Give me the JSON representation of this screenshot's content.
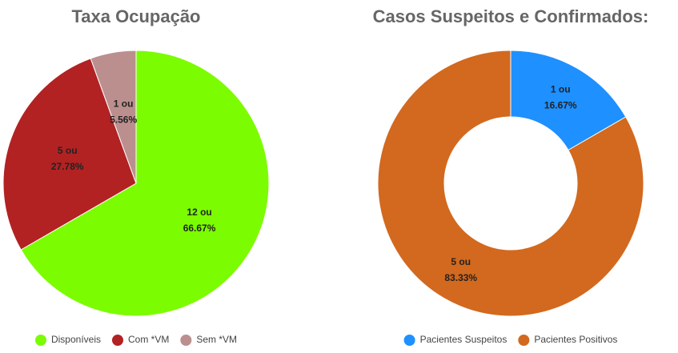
{
  "chart_data": [
    {
      "type": "pie",
      "title": "Taxa Ocupação",
      "categories": [
        "Disponíveis",
        "Com *VM",
        "Sem *VM"
      ],
      "values": [
        12,
        5,
        1
      ],
      "value_labels": [
        [
          "12 ou",
          "66.67%"
        ],
        [
          "5 ou",
          "27.78%"
        ],
        [
          "1 ou",
          "5.56%"
        ]
      ],
      "colors": [
        "#7cfc00",
        "#b22222",
        "#bc8f8f"
      ]
    },
    {
      "type": "doughnut",
      "title": "Casos Suspeitos e Confirmados:",
      "categories": [
        "Pacientes Suspeitos",
        "Pacientes Positivos"
      ],
      "values": [
        1,
        5
      ],
      "value_labels": [
        [
          "1 ou",
          "16.67%"
        ],
        [
          "5 ou",
          "83.33%"
        ]
      ],
      "colors": [
        "#1e90ff",
        "#d2691e"
      ]
    }
  ]
}
